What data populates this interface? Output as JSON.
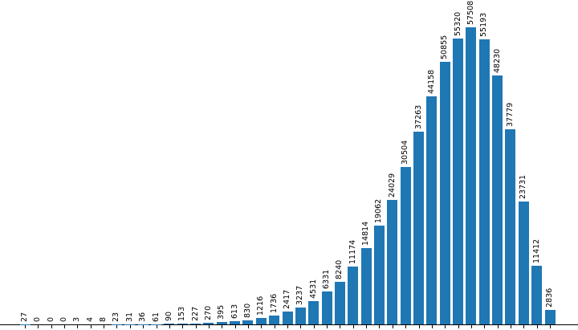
{
  "chart_data": {
    "type": "bar",
    "title": "",
    "xlabel": "",
    "ylabel": "",
    "values": [
      27,
      0,
      0,
      0,
      3,
      4,
      8,
      23,
      31,
      36,
      61,
      90,
      153,
      227,
      270,
      395,
      613,
      830,
      1216,
      1736,
      2417,
      3237,
      4531,
      6331,
      8240,
      11174,
      14814,
      19062,
      24029,
      30504,
      37263,
      44158,
      50855,
      55320,
      57508,
      55193,
      48230,
      37779,
      23731,
      11412,
      2836
    ],
    "bar_value_labels": [
      "27",
      "0",
      "0",
      "0",
      "3",
      "4",
      "8",
      "23",
      "31",
      "36",
      "61",
      "90",
      "153",
      "227",
      "270",
      "395",
      "613",
      "830",
      "1216",
      "1736",
      "2417",
      "3237",
      "4531",
      "6331",
      "8240",
      "11174",
      "14814",
      "19062",
      "24029",
      "30504",
      "37263",
      "44158",
      "50855",
      "55320",
      "57508",
      "55193",
      "48230",
      "37779",
      "23731",
      "11412",
      "2836"
    ],
    "bar_count": 41,
    "ylim": [
      0,
      57508
    ],
    "x_tick_labels": [],
    "grid": false,
    "legend_position": "none",
    "bar_color": "#1f77b4",
    "label_color": "#000000",
    "axis_color": "#000000",
    "label_rotation_degrees": 90
  }
}
